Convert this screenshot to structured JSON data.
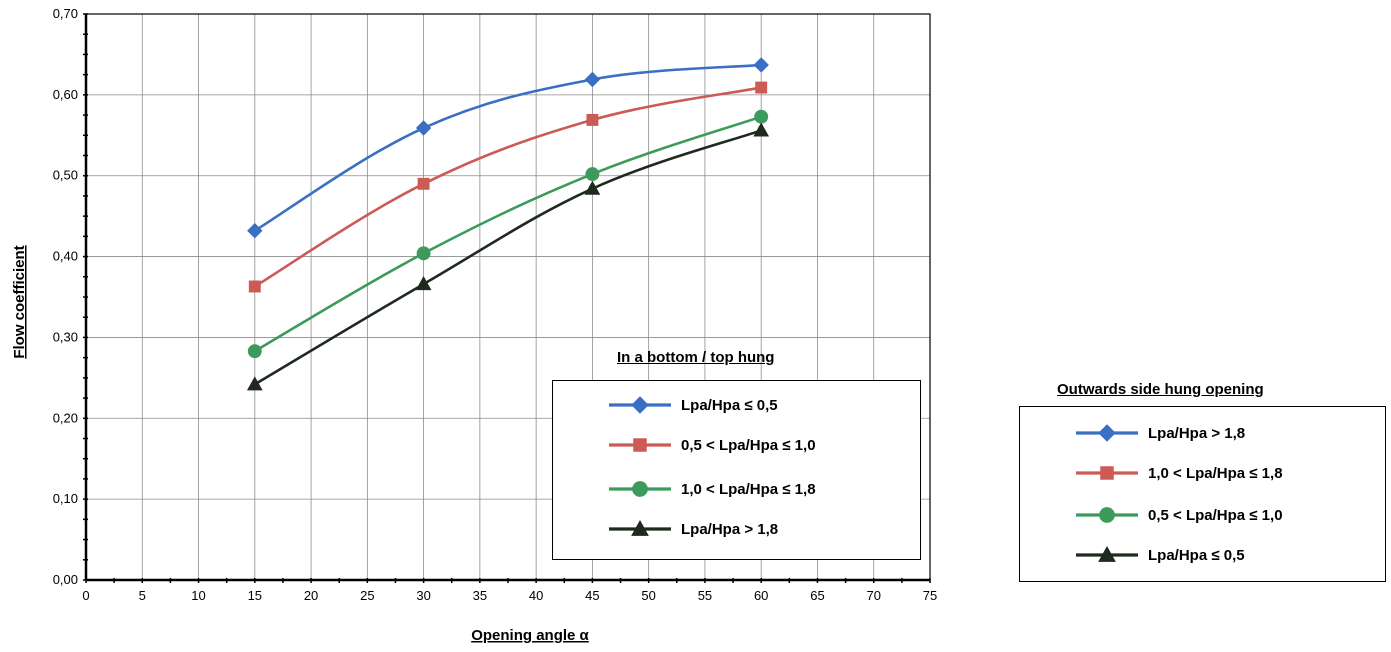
{
  "chart_data": {
    "type": "line",
    "title": "",
    "xlabel": "Opening angle α",
    "ylabel": "Flow coefficient",
    "xlim": [
      0,
      75
    ],
    "ylim": [
      0,
      0.7
    ],
    "x_ticks": [
      "0",
      "5",
      "10",
      "15",
      "20",
      "25",
      "30",
      "35",
      "40",
      "45",
      "50",
      "55",
      "60",
      "65",
      "70",
      "75"
    ],
    "y_ticks": [
      "0,00",
      "0,10",
      "0,20",
      "0,30",
      "0,40",
      "0,50",
      "0,60",
      "0,70"
    ],
    "grid": true,
    "x": [
      15,
      30,
      45,
      60
    ],
    "series": [
      {
        "values": [
          0.432,
          0.559,
          0.619,
          0.637
        ],
        "color": "#3a6fc4",
        "marker": "diamond"
      },
      {
        "values": [
          0.363,
          0.49,
          0.569,
          0.609
        ],
        "color": "#cc5a55",
        "marker": "square"
      },
      {
        "values": [
          0.283,
          0.404,
          0.502,
          0.573
        ],
        "color": "#3c9a5a",
        "marker": "circle"
      },
      {
        "values": [
          0.242,
          0.366,
          0.484,
          0.556
        ],
        "color": "#1f2a1f",
        "marker": "triangle"
      }
    ]
  },
  "legends": [
    {
      "title": "In a bottom / top hung",
      "entries": [
        {
          "label": "Lpa/Hpa ≤ 0,5",
          "color": "#3a6fc4",
          "marker": "diamond"
        },
        {
          "label": "0,5 < Lpa/Hpa ≤ 1,0",
          "color": "#cc5a55",
          "marker": "square"
        },
        {
          "label": "1,0 < Lpa/Hpa ≤ 1,8",
          "color": "#3c9a5a",
          "marker": "circle"
        },
        {
          "label": "Lpa/Hpa > 1,8",
          "color": "#1f2a1f",
          "marker": "triangle"
        }
      ]
    },
    {
      "title": "Outwards side hung opening",
      "entries": [
        {
          "label": "Lpa/Hpa > 1,8",
          "color": "#3a6fc4",
          "marker": "diamond"
        },
        {
          "label": "1,0 < Lpa/Hpa ≤ 1,8",
          "color": "#cc5a55",
          "marker": "square"
        },
        {
          "label": "0,5 < Lpa/Hpa ≤ 1,0",
          "color": "#3c9a5a",
          "marker": "circle"
        },
        {
          "label": "Lpa/Hpa ≤ 0,5",
          "color": "#1f2a1f",
          "marker": "triangle"
        }
      ]
    }
  ]
}
